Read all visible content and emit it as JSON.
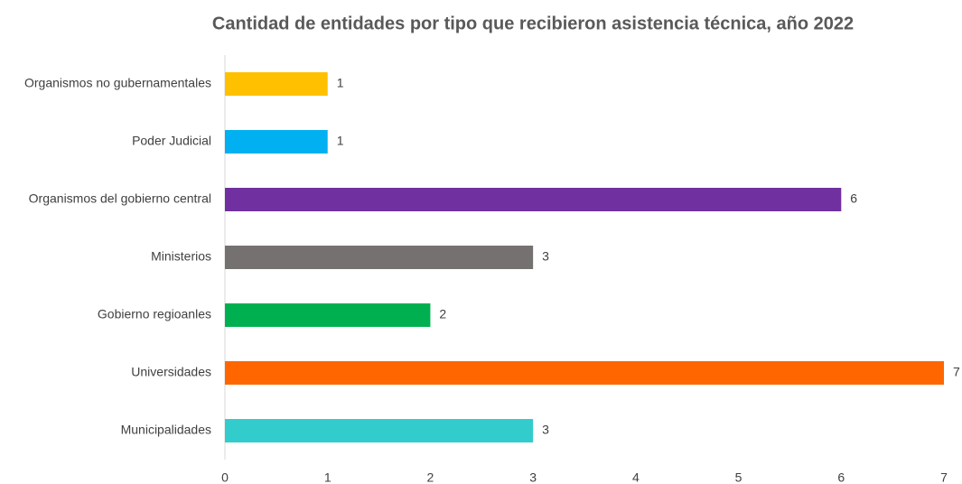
{
  "chart_data": {
    "type": "bar",
    "orientation": "horizontal",
    "title": "Cantidad de entidades por tipo que recibieron asistencia técnica, año 2022",
    "categories": [
      "Organismos no gubernamentales",
      "Poder Judicial",
      "Organismos del gobierno central",
      "Ministerios",
      "Gobierno regioanles",
      "Universidades",
      "Municipalidades"
    ],
    "values": [
      1,
      1,
      6,
      3,
      2,
      7,
      3
    ],
    "colors": [
      "#ffc000",
      "#00b0f0",
      "#7030a0",
      "#767171",
      "#00b050",
      "#ff6600",
      "#33cccc"
    ],
    "xlim": [
      0,
      7
    ],
    "xticks": [
      0,
      1,
      2,
      3,
      4,
      5,
      6,
      7
    ],
    "grid": false
  }
}
